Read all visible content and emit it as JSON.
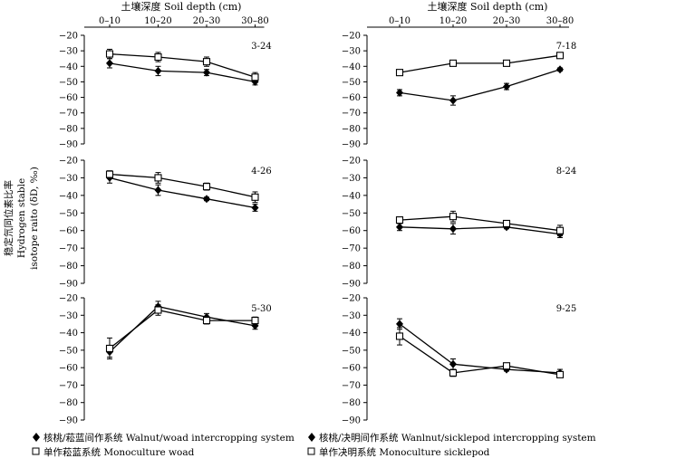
{
  "xlabel": "土壤深度 Soil depth (cm)",
  "ylabel_lines": [
    "稳定氘同位素比率",
    "Hydrogen stable",
    "isotope raito (δD, ‰)"
  ],
  "categories": [
    "0–10",
    "10–20",
    "20–30",
    "30–80"
  ],
  "y_ticks": [
    -20,
    -30,
    -40,
    -50,
    -60,
    -70,
    -80,
    -90
  ],
  "legend": {
    "left": [
      {
        "label": "核桃/菘蓝间作系统 Walnut/woad intercropping system",
        "marker": "diamond"
      },
      {
        "label": "单作菘蓝系统  Monoculture woad",
        "marker": "square"
      }
    ],
    "right": [
      {
        "label": "核桃/决明间作系统 Wanlnut/sicklepod intercropping system",
        "marker": "diamond"
      },
      {
        "label": "单作决明系统  Monoculture sicklepod",
        "marker": "square"
      }
    ]
  },
  "chart_data": [
    {
      "type": "line",
      "date": "3-24",
      "ylim": [
        -90,
        -20
      ],
      "series": [
        {
          "name": "核桃/菘蓝间作系统 Walnut/woad intercropping system",
          "marker": "diamond",
          "values": [
            -38,
            -43,
            -44,
            -50
          ],
          "errors": [
            3,
            3,
            2,
            2
          ]
        },
        {
          "name": "单作菘蓝系统  Monoculture woad",
          "marker": "square",
          "values": [
            -32,
            -34,
            -37,
            -47
          ],
          "errors": [
            3,
            3,
            3,
            3
          ]
        }
      ]
    },
    {
      "type": "line",
      "date": "7-18",
      "ylim": [
        -90,
        -20
      ],
      "series": [
        {
          "name": "核桃/决明间作系统 Wanlnut/sicklepod intercropping system",
          "marker": "diamond",
          "values": [
            -57,
            -62,
            -53,
            -42
          ],
          "errors": [
            2,
            3,
            2,
            1
          ]
        },
        {
          "name": "单作决明系统  Monoculture sicklepod",
          "marker": "square",
          "values": [
            -44,
            -38,
            -38,
            -33
          ],
          "errors": [
            1,
            1,
            1,
            1
          ]
        }
      ]
    },
    {
      "type": "line",
      "date": "4-26",
      "ylim": [
        -90,
        -20
      ],
      "series": [
        {
          "name": "核桃/菘蓝间作系统 Walnut/woad intercropping system",
          "marker": "diamond",
          "values": [
            -30,
            -37,
            -42,
            -47
          ],
          "errors": [
            3,
            3,
            1,
            2
          ]
        },
        {
          "name": "单作菘蓝系统  Monoculture woad",
          "marker": "square",
          "values": [
            -28,
            -30,
            -35,
            -41
          ],
          "errors": [
            2,
            3,
            2,
            3
          ]
        }
      ]
    },
    {
      "type": "line",
      "date": "8-24",
      "ylim": [
        -90,
        -20
      ],
      "series": [
        {
          "name": "核桃/决明间作系统 Wanlnut/sicklepod intercropping system",
          "marker": "diamond",
          "values": [
            -58,
            -59,
            -58,
            -62
          ],
          "errors": [
            2,
            3,
            1,
            2
          ]
        },
        {
          "name": "单作决明系统  Monoculture sicklepod",
          "marker": "square",
          "values": [
            -54,
            -52,
            -56,
            -60
          ],
          "errors": [
            1,
            3,
            1,
            3
          ]
        }
      ]
    },
    {
      "type": "line",
      "date": "5-30",
      "ylim": [
        -90,
        -20
      ],
      "series": [
        {
          "name": "核桃/菘蓝间作系统 Walnut/woad intercropping system",
          "marker": "diamond",
          "values": [
            -51,
            -25,
            -31,
            -36
          ],
          "errors": [
            3,
            3,
            2,
            2
          ]
        },
        {
          "name": "单作菘蓝系统  Monoculture woad",
          "marker": "square",
          "values": [
            -49,
            -27,
            -33,
            -33
          ],
          "errors": [
            6,
            3,
            2,
            2
          ]
        }
      ]
    },
    {
      "type": "line",
      "date": "9-25",
      "ylim": [
        -90,
        -20
      ],
      "series": [
        {
          "name": "核桃/决明间作系统 Wanlnut/sicklepod intercropping system",
          "marker": "diamond",
          "values": [
            -35,
            -58,
            -61,
            -63
          ],
          "errors": [
            3,
            3,
            1,
            2
          ]
        },
        {
          "name": "单作决明系统  Monoculture sicklepod",
          "marker": "square",
          "values": [
            -42,
            -63,
            -59,
            -64
          ],
          "errors": [
            5,
            2,
            1,
            1
          ]
        }
      ]
    }
  ]
}
